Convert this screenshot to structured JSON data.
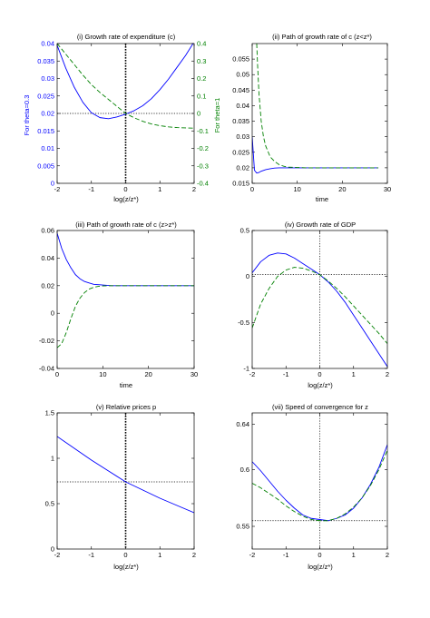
{
  "colors": {
    "blue": "#0000ff",
    "green": "#008000",
    "axis": "#000000"
  },
  "chart_data": [
    {
      "type": "line",
      "title": "(i) Growth rate of expenditure (c)",
      "xlabel": "log(z/z*)",
      "ylabel": "For theta=0.3",
      "y2label": "For theta=1",
      "xlim": [
        -2,
        2
      ],
      "ylim": [
        0,
        0.04
      ],
      "y2lim": [
        -0.4,
        0.4
      ],
      "xticks": [
        "-2",
        "-1",
        "0",
        "1",
        "2"
      ],
      "yticks": [
        "0",
        "0.005",
        "0.01",
        "0.015",
        "0.02",
        "0.025",
        "0.03",
        "0.035",
        "0.04"
      ],
      "y2ticks": [
        "-0.4",
        "-0.3",
        "-0.2",
        "-0.1",
        "0",
        "0.1",
        "0.2",
        "0.3",
        "0.4"
      ],
      "vline": 0,
      "hline": 0.02,
      "series": [
        {
          "color": "blue",
          "dash": "solid",
          "axis": "left",
          "x": [
            -2,
            -1.75,
            -1.5,
            -1.25,
            -1,
            -0.75,
            -0.5,
            -0.25,
            0,
            0.25,
            0.5,
            0.75,
            1,
            1.25,
            1.5,
            1.75,
            2
          ],
          "y": [
            0.0395,
            0.033,
            0.0275,
            0.0232,
            0.0202,
            0.0188,
            0.0185,
            0.019,
            0.0198,
            0.0208,
            0.0222,
            0.0242,
            0.0268,
            0.0298,
            0.0332,
            0.0366,
            0.0405
          ]
        },
        {
          "color": "green",
          "dash": "dashed",
          "axis": "right",
          "x": [
            -2,
            -1.75,
            -1.5,
            -1.25,
            -1,
            -0.75,
            -0.5,
            -0.25,
            0,
            0.25,
            0.5,
            0.75,
            1,
            1.25,
            1.5,
            1.75,
            2
          ],
          "y": [
            0.4,
            0.34,
            0.28,
            0.22,
            0.165,
            0.12,
            0.08,
            0.04,
            0.0,
            -0.025,
            -0.045,
            -0.06,
            -0.07,
            -0.077,
            -0.081,
            -0.083,
            -0.084
          ]
        }
      ]
    },
    {
      "type": "line",
      "title": "(ii) Path of growth rate of c (z<z*)",
      "xlabel": "time",
      "xlim": [
        0,
        30
      ],
      "ylim": [
        0.015,
        0.06
      ],
      "xticks": [
        "0",
        "10",
        "20",
        "30"
      ],
      "yticks": [
        "0.015",
        "0.02",
        "0.025",
        "0.03",
        "0.035",
        "0.04",
        "0.045",
        "0.05",
        "0.055"
      ],
      "series": [
        {
          "color": "blue",
          "dash": "solid",
          "x": [
            0,
            0.5,
            1,
            1.5,
            2,
            3,
            4,
            5,
            6,
            8,
            10,
            15,
            20,
            28
          ],
          "y": [
            0.03,
            0.0192,
            0.0183,
            0.0185,
            0.0189,
            0.0194,
            0.0197,
            0.0199,
            0.02,
            0.02,
            0.02,
            0.02,
            0.02,
            0.02
          ]
        },
        {
          "color": "green",
          "dash": "dashed",
          "x": [
            1,
            1.2,
            1.5,
            2,
            2.5,
            3,
            4,
            5,
            6,
            7,
            8,
            10,
            12,
            15,
            20,
            28
          ],
          "y": [
            0.06,
            0.053,
            0.044,
            0.035,
            0.03,
            0.027,
            0.0235,
            0.022,
            0.021,
            0.0205,
            0.0202,
            0.0201,
            0.02,
            0.02,
            0.02,
            0.02
          ]
        }
      ]
    },
    {
      "type": "line",
      "title": "(iii) Path of growth rate of c (z>z*)",
      "xlabel": "time",
      "xlim": [
        0,
        30
      ],
      "ylim": [
        -0.04,
        0.06
      ],
      "xticks": [
        "0",
        "10",
        "20",
        "30"
      ],
      "yticks": [
        "-0.04",
        "-0.02",
        "0",
        "0.02",
        "0.04",
        "0.06"
      ],
      "series": [
        {
          "color": "blue",
          "dash": "solid",
          "x": [
            0,
            1,
            2,
            3,
            4,
            5,
            6,
            7,
            8,
            10,
            12,
            15,
            20,
            30
          ],
          "y": [
            0.058,
            0.047,
            0.039,
            0.033,
            0.028,
            0.025,
            0.023,
            0.022,
            0.021,
            0.0205,
            0.02,
            0.02,
            0.02,
            0.02
          ]
        },
        {
          "color": "green",
          "dash": "dashed",
          "x": [
            0,
            1,
            2,
            3,
            4,
            5,
            6,
            7,
            8,
            9,
            10,
            12,
            15,
            20,
            30
          ],
          "y": [
            -0.025,
            -0.022,
            -0.014,
            -0.004,
            0.005,
            0.011,
            0.015,
            0.0175,
            0.0188,
            0.0195,
            0.0198,
            0.02,
            0.02,
            0.02,
            0.02
          ]
        }
      ]
    },
    {
      "type": "line",
      "title": "(iv) Growth rate of GDP",
      "xlabel": "log(z/z*)",
      "xlim": [
        -2,
        2
      ],
      "ylim": [
        -1,
        0.5
      ],
      "xticks": [
        "-2",
        "-1",
        "0",
        "1",
        "2"
      ],
      "yticks": [
        "-1",
        "-0.5",
        "0",
        "0.5"
      ],
      "vline": 0,
      "hline": 0.02,
      "series": [
        {
          "color": "blue",
          "dash": "solid",
          "x": [
            -2,
            -1.75,
            -1.5,
            -1.25,
            -1,
            -0.75,
            -0.5,
            -0.25,
            0,
            0.25,
            0.5,
            0.75,
            1,
            1.25,
            1.5,
            1.75,
            2
          ],
          "y": [
            0.04,
            0.16,
            0.23,
            0.255,
            0.245,
            0.2,
            0.14,
            0.08,
            0.02,
            -0.06,
            -0.16,
            -0.28,
            -0.42,
            -0.56,
            -0.7,
            -0.84,
            -0.98
          ]
        },
        {
          "color": "green",
          "dash": "dashed",
          "x": [
            -2,
            -1.75,
            -1.5,
            -1.25,
            -1,
            -0.75,
            -0.5,
            -0.25,
            0,
            0.25,
            0.5,
            0.75,
            1,
            1.25,
            1.5,
            1.75,
            2
          ],
          "y": [
            -0.56,
            -0.3,
            -0.13,
            0.0,
            0.07,
            0.1,
            0.09,
            0.06,
            0.02,
            -0.05,
            -0.13,
            -0.22,
            -0.32,
            -0.42,
            -0.52,
            -0.62,
            -0.73
          ]
        }
      ]
    },
    {
      "type": "line",
      "title": "(v) Relative prices p",
      "xlabel": "log(z/z*)",
      "xlim": [
        -2,
        2
      ],
      "ylim": [
        0,
        1.5
      ],
      "xticks": [
        "-2",
        "-1",
        "0",
        "1",
        "2"
      ],
      "yticks": [
        "0",
        "0.5",
        "1",
        "1.5"
      ],
      "vline": 0,
      "hline": 0.74,
      "series": [
        {
          "color": "blue",
          "dash": "solid",
          "x": [
            -2,
            -1.5,
            -1,
            -0.5,
            0,
            0.5,
            1,
            1.5,
            2
          ],
          "y": [
            1.24,
            1.11,
            0.98,
            0.86,
            0.74,
            0.65,
            0.56,
            0.48,
            0.4
          ]
        }
      ]
    },
    {
      "type": "line",
      "title": "(vii) Speed of convergence for z",
      "xlabel": "log(z/z*)",
      "xlim": [
        -2,
        2
      ],
      "ylim": [
        0.53,
        0.65
      ],
      "xticks": [
        "-2",
        "-1",
        "0",
        "1",
        "2"
      ],
      "yticks": [
        "0.55",
        "0.6",
        "0.64"
      ],
      "vline": 0,
      "hline": 0.555,
      "series": [
        {
          "color": "blue",
          "dash": "solid",
          "x": [
            -2,
            -1.75,
            -1.5,
            -1.25,
            -1,
            -0.75,
            -0.5,
            -0.25,
            0,
            0.25,
            0.5,
            0.75,
            1,
            1.25,
            1.5,
            1.75,
            2
          ],
          "y": [
            0.607,
            0.599,
            0.59,
            0.581,
            0.573,
            0.566,
            0.56,
            0.557,
            0.556,
            0.555,
            0.557,
            0.56,
            0.566,
            0.575,
            0.587,
            0.602,
            0.622
          ]
        },
        {
          "color": "green",
          "dash": "dashed",
          "x": [
            -2,
            -1.75,
            -1.5,
            -1.25,
            -1,
            -0.75,
            -0.5,
            -0.25,
            0,
            0.25,
            0.5,
            0.75,
            1,
            1.25,
            1.5,
            1.75,
            2
          ],
          "y": [
            0.588,
            0.584,
            0.579,
            0.574,
            0.568,
            0.563,
            0.559,
            0.556,
            0.555,
            0.555,
            0.557,
            0.561,
            0.567,
            0.575,
            0.586,
            0.6,
            0.617
          ]
        }
      ]
    }
  ]
}
